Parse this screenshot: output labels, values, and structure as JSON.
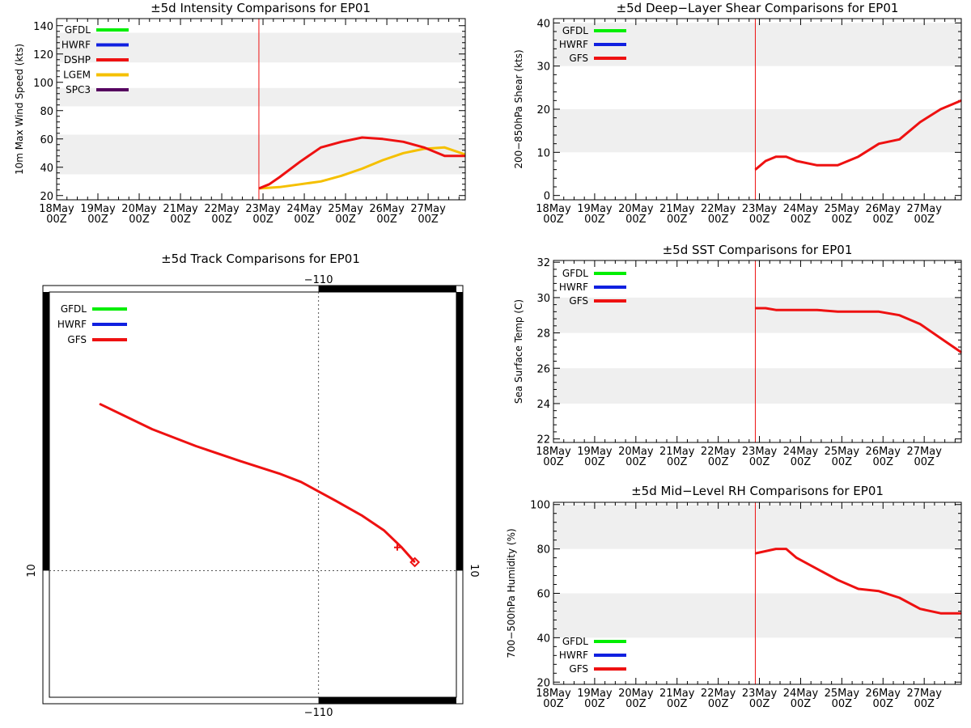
{
  "colors": {
    "gfdl": "#00ee00",
    "hwrf": "#1020e0",
    "gfs": "#ee1111",
    "dshp": "#ee1111",
    "lgem": "#f5c000",
    "spc3": "#55005f",
    "band": "#efefef",
    "init_line": "#ee1111"
  },
  "chart_data": [
    {
      "id": "intensity",
      "type": "line",
      "title": "±5d Intensity Comparisons for EP01",
      "ylabel": "10m Max Wind Speed (kts)",
      "xlim": [
        0,
        9.9
      ],
      "ylim": [
        17,
        145
      ],
      "yticks": [
        20,
        40,
        60,
        80,
        100,
        120,
        140
      ],
      "bands": [
        [
          35,
          63
        ],
        [
          83,
          96
        ],
        [
          114,
          135
        ]
      ],
      "init_x": 4.9,
      "x_categories": [
        {
          "day": "18May",
          "hour": "00Z"
        },
        {
          "day": "19May",
          "hour": "00Z"
        },
        {
          "day": "20May",
          "hour": "00Z"
        },
        {
          "day": "21May",
          "hour": "00Z"
        },
        {
          "day": "22May",
          "hour": "00Z"
        },
        {
          "day": "23May",
          "hour": "00Z"
        },
        {
          "day": "24May",
          "hour": "00Z"
        },
        {
          "day": "25May",
          "hour": "00Z"
        },
        {
          "day": "26May",
          "hour": "00Z"
        },
        {
          "day": "27May",
          "hour": "00Z"
        }
      ],
      "legend": [
        {
          "name": "GFDL",
          "color": "#00ee00"
        },
        {
          "name": "HWRF",
          "color": "#1020e0"
        },
        {
          "name": "DSHP",
          "color": "#ee1111"
        },
        {
          "name": "LGEM",
          "color": "#f5c000"
        },
        {
          "name": "SPC3",
          "color": "#55005f"
        }
      ],
      "series": [
        {
          "name": "LGEM",
          "color": "#f5c000",
          "x": [
            4.9,
            5.4,
            5.9,
            6.4,
            6.9,
            7.4,
            7.9,
            8.4,
            8.9,
            9.4,
            9.9
          ],
          "values": [
            25,
            26,
            28,
            30,
            34,
            39,
            45,
            50,
            53,
            54,
            49
          ]
        },
        {
          "name": "DSHP",
          "color": "#ee1111",
          "x": [
            4.9,
            5.15,
            5.4,
            5.9,
            6.4,
            6.9,
            7.4,
            7.9,
            8.4,
            8.9,
            9.4,
            9.9
          ],
          "values": [
            25,
            28,
            33,
            44,
            54,
            58,
            61,
            60,
            58,
            54,
            48,
            48
          ]
        }
      ]
    },
    {
      "id": "shear",
      "type": "line",
      "title": "±5d Deep−Layer Shear Comparisons for EP01",
      "ylabel": "200−850hPa Shear (kts)",
      "xlim": [
        0,
        9.9
      ],
      "ylim": [
        -1,
        41
      ],
      "yticks": [
        0,
        10,
        20,
        30,
        40
      ],
      "bands": [
        [
          10,
          20
        ],
        [
          30,
          40
        ]
      ],
      "init_x": 4.9,
      "x_categories": [
        {
          "day": "18May",
          "hour": "00Z"
        },
        {
          "day": "19May",
          "hour": "00Z"
        },
        {
          "day": "20May",
          "hour": "00Z"
        },
        {
          "day": "21May",
          "hour": "00Z"
        },
        {
          "day": "22May",
          "hour": "00Z"
        },
        {
          "day": "23May",
          "hour": "00Z"
        },
        {
          "day": "24May",
          "hour": "00Z"
        },
        {
          "day": "25May",
          "hour": "00Z"
        },
        {
          "day": "26May",
          "hour": "00Z"
        },
        {
          "day": "27May",
          "hour": "00Z"
        }
      ],
      "legend": [
        {
          "name": "GFDL",
          "color": "#00ee00"
        },
        {
          "name": "HWRF",
          "color": "#1020e0"
        },
        {
          "name": "GFS",
          "color": "#ee1111"
        }
      ],
      "series": [
        {
          "name": "GFS",
          "color": "#ee1111",
          "x": [
            4.9,
            5.15,
            5.4,
            5.65,
            5.9,
            6.4,
            6.9,
            7.4,
            7.9,
            8.4,
            8.9,
            9.4,
            9.9
          ],
          "values": [
            6,
            8,
            9,
            9,
            8,
            7,
            7,
            9,
            12,
            13,
            17,
            20,
            22
          ]
        }
      ]
    },
    {
      "id": "sst",
      "type": "line",
      "title": "±5d SST Comparisons for EP01",
      "ylabel": "Sea Surface Temp (C)",
      "xlim": [
        0,
        9.9
      ],
      "ylim": [
        21.8,
        32.1
      ],
      "yticks": [
        22,
        24,
        26,
        28,
        30,
        32
      ],
      "bands": [
        [
          24,
          26
        ],
        [
          28,
          30
        ]
      ],
      "init_x": 4.9,
      "x_categories": [
        {
          "day": "18May",
          "hour": "00Z"
        },
        {
          "day": "19May",
          "hour": "00Z"
        },
        {
          "day": "20May",
          "hour": "00Z"
        },
        {
          "day": "21May",
          "hour": "00Z"
        },
        {
          "day": "22May",
          "hour": "00Z"
        },
        {
          "day": "23May",
          "hour": "00Z"
        },
        {
          "day": "24May",
          "hour": "00Z"
        },
        {
          "day": "25May",
          "hour": "00Z"
        },
        {
          "day": "26May",
          "hour": "00Z"
        },
        {
          "day": "27May",
          "hour": "00Z"
        }
      ],
      "legend": [
        {
          "name": "GFDL",
          "color": "#00ee00"
        },
        {
          "name": "HWRF",
          "color": "#1020e0"
        },
        {
          "name": "GFS",
          "color": "#ee1111"
        }
      ],
      "series": [
        {
          "name": "GFS",
          "color": "#ee1111",
          "x": [
            4.9,
            5.15,
            5.4,
            5.9,
            6.4,
            6.9,
            7.4,
            7.9,
            8.4,
            8.9,
            9.4,
            9.9
          ],
          "values": [
            29.4,
            29.4,
            29.3,
            29.3,
            29.3,
            29.2,
            29.2,
            29.2,
            29.0,
            28.5,
            27.7,
            26.9
          ]
        }
      ]
    },
    {
      "id": "rh",
      "type": "line",
      "title": "±5d Mid−Level RH Comparisons for EP01",
      "ylabel": "700−500hPa Humidity (%)",
      "xlim": [
        0,
        9.9
      ],
      "ylim": [
        19,
        101
      ],
      "yticks": [
        20,
        40,
        60,
        80,
        100
      ],
      "bands": [
        [
          40,
          60
        ],
        [
          80,
          100
        ]
      ],
      "init_x": 4.9,
      "x_categories": [
        {
          "day": "18May",
          "hour": "00Z"
        },
        {
          "day": "19May",
          "hour": "00Z"
        },
        {
          "day": "20May",
          "hour": "00Z"
        },
        {
          "day": "21May",
          "hour": "00Z"
        },
        {
          "day": "22May",
          "hour": "00Z"
        },
        {
          "day": "23May",
          "hour": "00Z"
        },
        {
          "day": "24May",
          "hour": "00Z"
        },
        {
          "day": "25May",
          "hour": "00Z"
        },
        {
          "day": "26May",
          "hour": "00Z"
        },
        {
          "day": "27May",
          "hour": "00Z"
        }
      ],
      "legend": [
        {
          "name": "GFDL",
          "color": "#00ee00"
        },
        {
          "name": "HWRF",
          "color": "#1020e0"
        },
        {
          "name": "GFS",
          "color": "#ee1111"
        }
      ],
      "series": [
        {
          "name": "GFS",
          "color": "#ee1111",
          "x": [
            4.9,
            5.4,
            5.65,
            5.9,
            6.4,
            6.9,
            7.4,
            7.9,
            8.4,
            8.9,
            9.4,
            9.9
          ],
          "values": [
            78,
            80,
            80,
            76,
            71,
            66,
            62,
            61,
            58,
            53,
            51,
            51
          ]
        }
      ]
    },
    {
      "id": "track",
      "type": "map",
      "title": "±5d Track Comparisons for EP01",
      "lon_label": "−110",
      "lat_label": "10",
      "lon_range": [
        -116.15,
        -106.85
      ],
      "lat_range": [
        7.0,
        16.6
      ],
      "ref_lon": -110,
      "ref_lat": 10,
      "legend": [
        {
          "name": "GFDL",
          "color": "#00ee00"
        },
        {
          "name": "HWRF",
          "color": "#1020e0"
        },
        {
          "name": "GFS",
          "color": "#ee1111"
        }
      ],
      "series": [
        {
          "name": "GFS",
          "color": "#ee1111",
          "lon": [
            -107.8,
            -108.1,
            -108.5,
            -109.0,
            -109.6,
            -110.4,
            -110.9,
            -111.8,
            -112.8,
            -113.8,
            -115.0
          ],
          "lat": [
            10.2,
            10.55,
            10.95,
            11.3,
            11.65,
            12.1,
            12.3,
            12.6,
            12.95,
            13.35,
            13.95
          ]
        }
      ],
      "start_marker": {
        "lon": -107.8,
        "lat": 10.2,
        "symbol": "diamond"
      },
      "day_marker": {
        "lon": -108.2,
        "lat": 10.55,
        "symbol": "plus"
      }
    }
  ]
}
